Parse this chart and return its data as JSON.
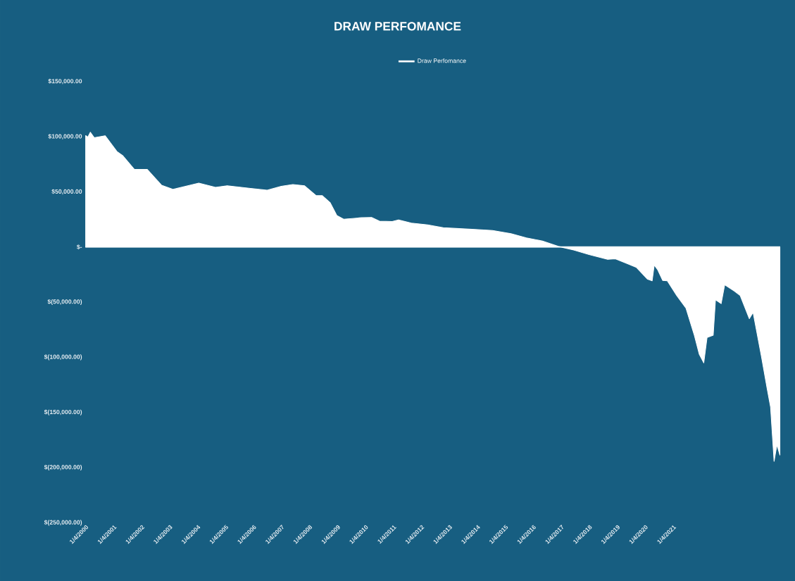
{
  "chart_data": {
    "type": "area",
    "title": "DRAW PERFOMANCE",
    "legend": "top",
    "x": [
      "2000-01-04",
      "2000-02-01",
      "2000-03-05",
      "2000-04-25",
      "2000-09-15",
      "2001-02-15",
      "2001-05-01",
      "2001-10-01",
      "2002-03-18",
      "2002-09-20",
      "2003-02-20",
      "2004-01-20",
      "2004-08-25",
      "2005-01-25",
      "2005-11-25",
      "2006-07-01",
      "2007-01-01",
      "2007-06-01",
      "2007-11-01",
      "2008-04-01",
      "2008-06-20",
      "2008-10-01",
      "2008-12-25",
      "2009-03-25",
      "2009-11-12",
      "2010-03-25",
      "2010-07-05",
      "2010-12-20",
      "2011-03-12",
      "2011-08-25",
      "2012-03-25",
      "2012-10-15",
      "2013-10-25",
      "2014-07-20",
      "2015-03-18",
      "2015-10-05",
      "2016-05-03",
      "2016-11-25",
      "2017-06-15",
      "2018-01-03",
      "2018-09-01",
      "2018-12-10",
      "2019-05-25",
      "2019-09-13",
      "2020-02-01",
      "2020-04-04",
      "2020-05-01",
      "2020-06-15",
      "2020-08-19",
      "2020-10-19",
      "2021-02-19",
      "2021-06-19",
      "2021-10-07",
      "2021-12-10",
      "2022-02-07",
      "2022-03-22",
      "2022-06-10",
      "2022-07-10",
      "2022-09-22",
      "2022-11-07",
      "2023-03-13",
      "2023-05-28",
      "2023-09-25",
      "2023-11-13",
      "2024-03-01",
      "2024-05-13",
      "2024-06-28",
      "2024-08-13",
      "2024-09-19",
      "2024-10-28"
    ],
    "series": [
      {
        "name": "Draw Perfomance",
        "color": "#ffffff",
        "values": [
          101000,
          99500,
          104000,
          99000,
          100800,
          86500,
          82800,
          70300,
          70300,
          56000,
          52200,
          57900,
          54100,
          55400,
          53100,
          51400,
          55000,
          56600,
          55400,
          46500,
          46500,
          40000,
          28600,
          25100,
          26500,
          26800,
          23400,
          23100,
          24500,
          21700,
          20000,
          17400,
          16000,
          14900,
          12000,
          8300,
          5300,
          500,
          -2700,
          -6900,
          -11200,
          -10800,
          -15400,
          -18600,
          -29100,
          -30700,
          -16400,
          -20600,
          -30300,
          -30700,
          -44000,
          -55400,
          -80000,
          -97200,
          -105000,
          -82100,
          -80000,
          -47800,
          -51400,
          -34300,
          -40000,
          -44000,
          -65000,
          -59300,
          -99300,
          -127800,
          -145000,
          -194300,
          -179300,
          -188600
        ]
      }
    ],
    "xlim": [
      "2000-01-01",
      "2024-11-01"
    ],
    "xticks": [
      {
        "value": "2000-01-04",
        "label": "1/4/2000"
      },
      {
        "value": "2001-01-04",
        "label": "1/4/2001"
      },
      {
        "value": "2002-01-04",
        "label": "1/4/2002"
      },
      {
        "value": "2003-01-04",
        "label": "1/4/2003"
      },
      {
        "value": "2004-01-04",
        "label": "1/4/2004"
      },
      {
        "value": "2005-01-04",
        "label": "1/4/2005"
      },
      {
        "value": "2006-01-04",
        "label": "1/4/2006"
      },
      {
        "value": "2007-01-04",
        "label": "1/4/2007"
      },
      {
        "value": "2008-01-04",
        "label": "1/4/2008"
      },
      {
        "value": "2009-01-04",
        "label": "1/4/2009"
      },
      {
        "value": "2010-01-04",
        "label": "1/4/2010"
      },
      {
        "value": "2011-01-04",
        "label": "1/4/2011"
      },
      {
        "value": "2012-01-04",
        "label": "1/4/2012"
      },
      {
        "value": "2013-01-04",
        "label": "1/4/2013"
      },
      {
        "value": "2014-01-04",
        "label": "1/4/2014"
      },
      {
        "value": "2015-01-04",
        "label": "1/4/2015"
      },
      {
        "value": "2016-01-04",
        "label": "1/4/2016"
      },
      {
        "value": "2017-01-04",
        "label": "1/4/2017"
      },
      {
        "value": "2018-01-04",
        "label": "1/4/2018"
      },
      {
        "value": "2019-01-04",
        "label": "1/4/2019"
      },
      {
        "value": "2020-01-04",
        "label": "1/4/2020"
      },
      {
        "value": "2021-01-04",
        "label": "1/4/2021"
      }
    ],
    "ylim": [
      -250000,
      150000
    ],
    "yticks": [
      {
        "value": 150000,
        "label": "$150,000.00"
      },
      {
        "value": 100000,
        "label": "$100,000.00"
      },
      {
        "value": 50000,
        "label": "$50,000.00"
      },
      {
        "value": 0,
        "label": "$-"
      },
      {
        "value": -50000,
        "label": "$(50,000.00)"
      },
      {
        "value": -100000,
        "label": "$(100,000.00)"
      },
      {
        "value": -150000,
        "label": "$(150,000.00)"
      },
      {
        "value": -200000,
        "label": "$(200,000.00)"
      },
      {
        "value": -250000,
        "label": "$(250,000.00)"
      }
    ]
  }
}
